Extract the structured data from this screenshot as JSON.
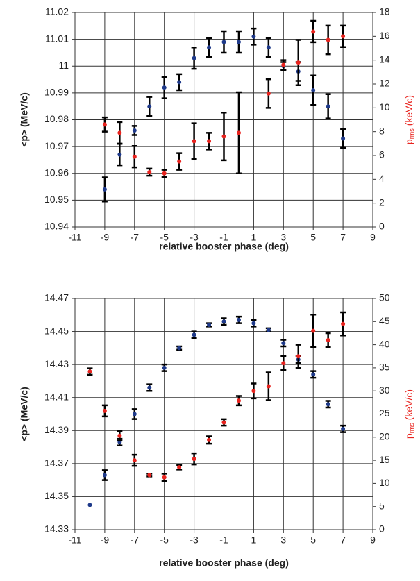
{
  "chart_data": [
    {
      "type": "scatter",
      "xlabel": "relative booster phase (deg)",
      "ylabel": "<p> (MeV/c)",
      "y2label": "p",
      "y2label_sub": "rms",
      "y2label_unit": "(keV/c)",
      "x": [
        -9,
        -8,
        -7,
        -6,
        -5,
        -4,
        -3,
        -2,
        -1,
        0,
        1,
        2,
        3,
        4,
        5,
        6,
        7
      ],
      "xlim": [
        -11,
        9
      ],
      "xticks": [
        -11,
        -9,
        -7,
        -5,
        -3,
        -1,
        1,
        3,
        5,
        7,
        9
      ],
      "ylim": [
        10.94,
        11.02
      ],
      "yticks": [
        10.94,
        10.95,
        10.96,
        10.97,
        10.98,
        10.99,
        11,
        11.01,
        11.02
      ],
      "y2lim": [
        0,
        18
      ],
      "y2ticks": [
        0,
        2,
        4,
        6,
        8,
        10,
        12,
        14,
        16,
        18
      ],
      "grid": true,
      "series": [
        {
          "color": "#1f3a8a",
          "axis": "y",
          "values": [
            10.954,
            10.967,
            10.976,
            10.985,
            10.992,
            10.994,
            11.003,
            11.007,
            11.009,
            11.009,
            11.011,
            11.007,
            11.0,
            10.998,
            10.991,
            10.985,
            10.973
          ],
          "errors": [
            0.0045,
            0.004,
            0.0017,
            0.0035,
            0.004,
            0.003,
            0.004,
            0.0035,
            0.004,
            0.004,
            0.003,
            0.0035,
            0.0015,
            0.0035,
            0.0055,
            0.0045,
            0.0035
          ]
        },
        {
          "color": "#e8231e",
          "axis": "y2",
          "values": [
            8.6,
            7.9,
            5.9,
            4.6,
            4.5,
            5.5,
            7.2,
            7.2,
            7.6,
            7.9,
            null,
            11.2,
            13.6,
            13.8,
            16.4,
            15.7,
            16.0
          ],
          "errors": [
            0.6,
            0.9,
            0.9,
            0.3,
            0.3,
            0.7,
            1.5,
            0.7,
            2.0,
            3.4,
            null,
            1.2,
            0.4,
            1.9,
            0.9,
            1.2,
            0.9
          ]
        }
      ]
    },
    {
      "type": "scatter",
      "xlabel": "relative booster phase (deg)",
      "ylabel": "<p> (MeV/c)",
      "y2label": "p",
      "y2label_sub": "rms",
      "y2label_unit": "(keV/c)",
      "x": [
        -10,
        -9,
        -8,
        -7,
        -6,
        -5,
        -4,
        -3,
        -2,
        -1,
        0,
        1,
        2,
        3,
        4,
        5,
        6,
        7
      ],
      "xlim": [
        -11,
        9
      ],
      "xticks": [
        -11,
        -9,
        -7,
        -5,
        -3,
        -1,
        1,
        3,
        5,
        7,
        9
      ],
      "ylim": [
        14.33,
        14.47
      ],
      "yticks": [
        14.33,
        14.35,
        14.37,
        14.39,
        14.41,
        14.43,
        14.45,
        14.47
      ],
      "y2lim": [
        0,
        50
      ],
      "y2ticks": [
        0,
        5,
        10,
        15,
        20,
        25,
        30,
        35,
        40,
        45,
        50
      ],
      "grid": true,
      "series": [
        {
          "color": "#1f3a8a",
          "axis": "y",
          "values": [
            14.345,
            14.363,
            14.383,
            14.4,
            14.416,
            14.428,
            14.44,
            14.448,
            14.454,
            14.456,
            14.457,
            14.455,
            14.451,
            14.443,
            14.433,
            14.424,
            14.406,
            14.391
          ],
          "errors": [
            null,
            0.003,
            0.002,
            0.003,
            0.002,
            0.002,
            0.001,
            0.002,
            0.001,
            0.002,
            0.002,
            0.002,
            0.001,
            0.002,
            0.002,
            0.002,
            0.002,
            0.002
          ]
        },
        {
          "color": "#e8231e",
          "axis": "y2",
          "values": [
            34.2,
            25.7,
            20.3,
            15.0,
            11.8,
            11.3,
            13.5,
            15.3,
            19.4,
            23.2,
            27.9,
            30.0,
            31.0,
            36.0,
            37.5,
            43.0,
            41.0,
            44.5
          ],
          "errors": [
            0.7,
            1.2,
            1.0,
            1.2,
            0.3,
            0.8,
            0.5,
            1.2,
            0.8,
            0.7,
            1.0,
            1.6,
            3.0,
            1.5,
            2.5,
            3.5,
            1.5,
            2.5
          ]
        }
      ]
    }
  ]
}
